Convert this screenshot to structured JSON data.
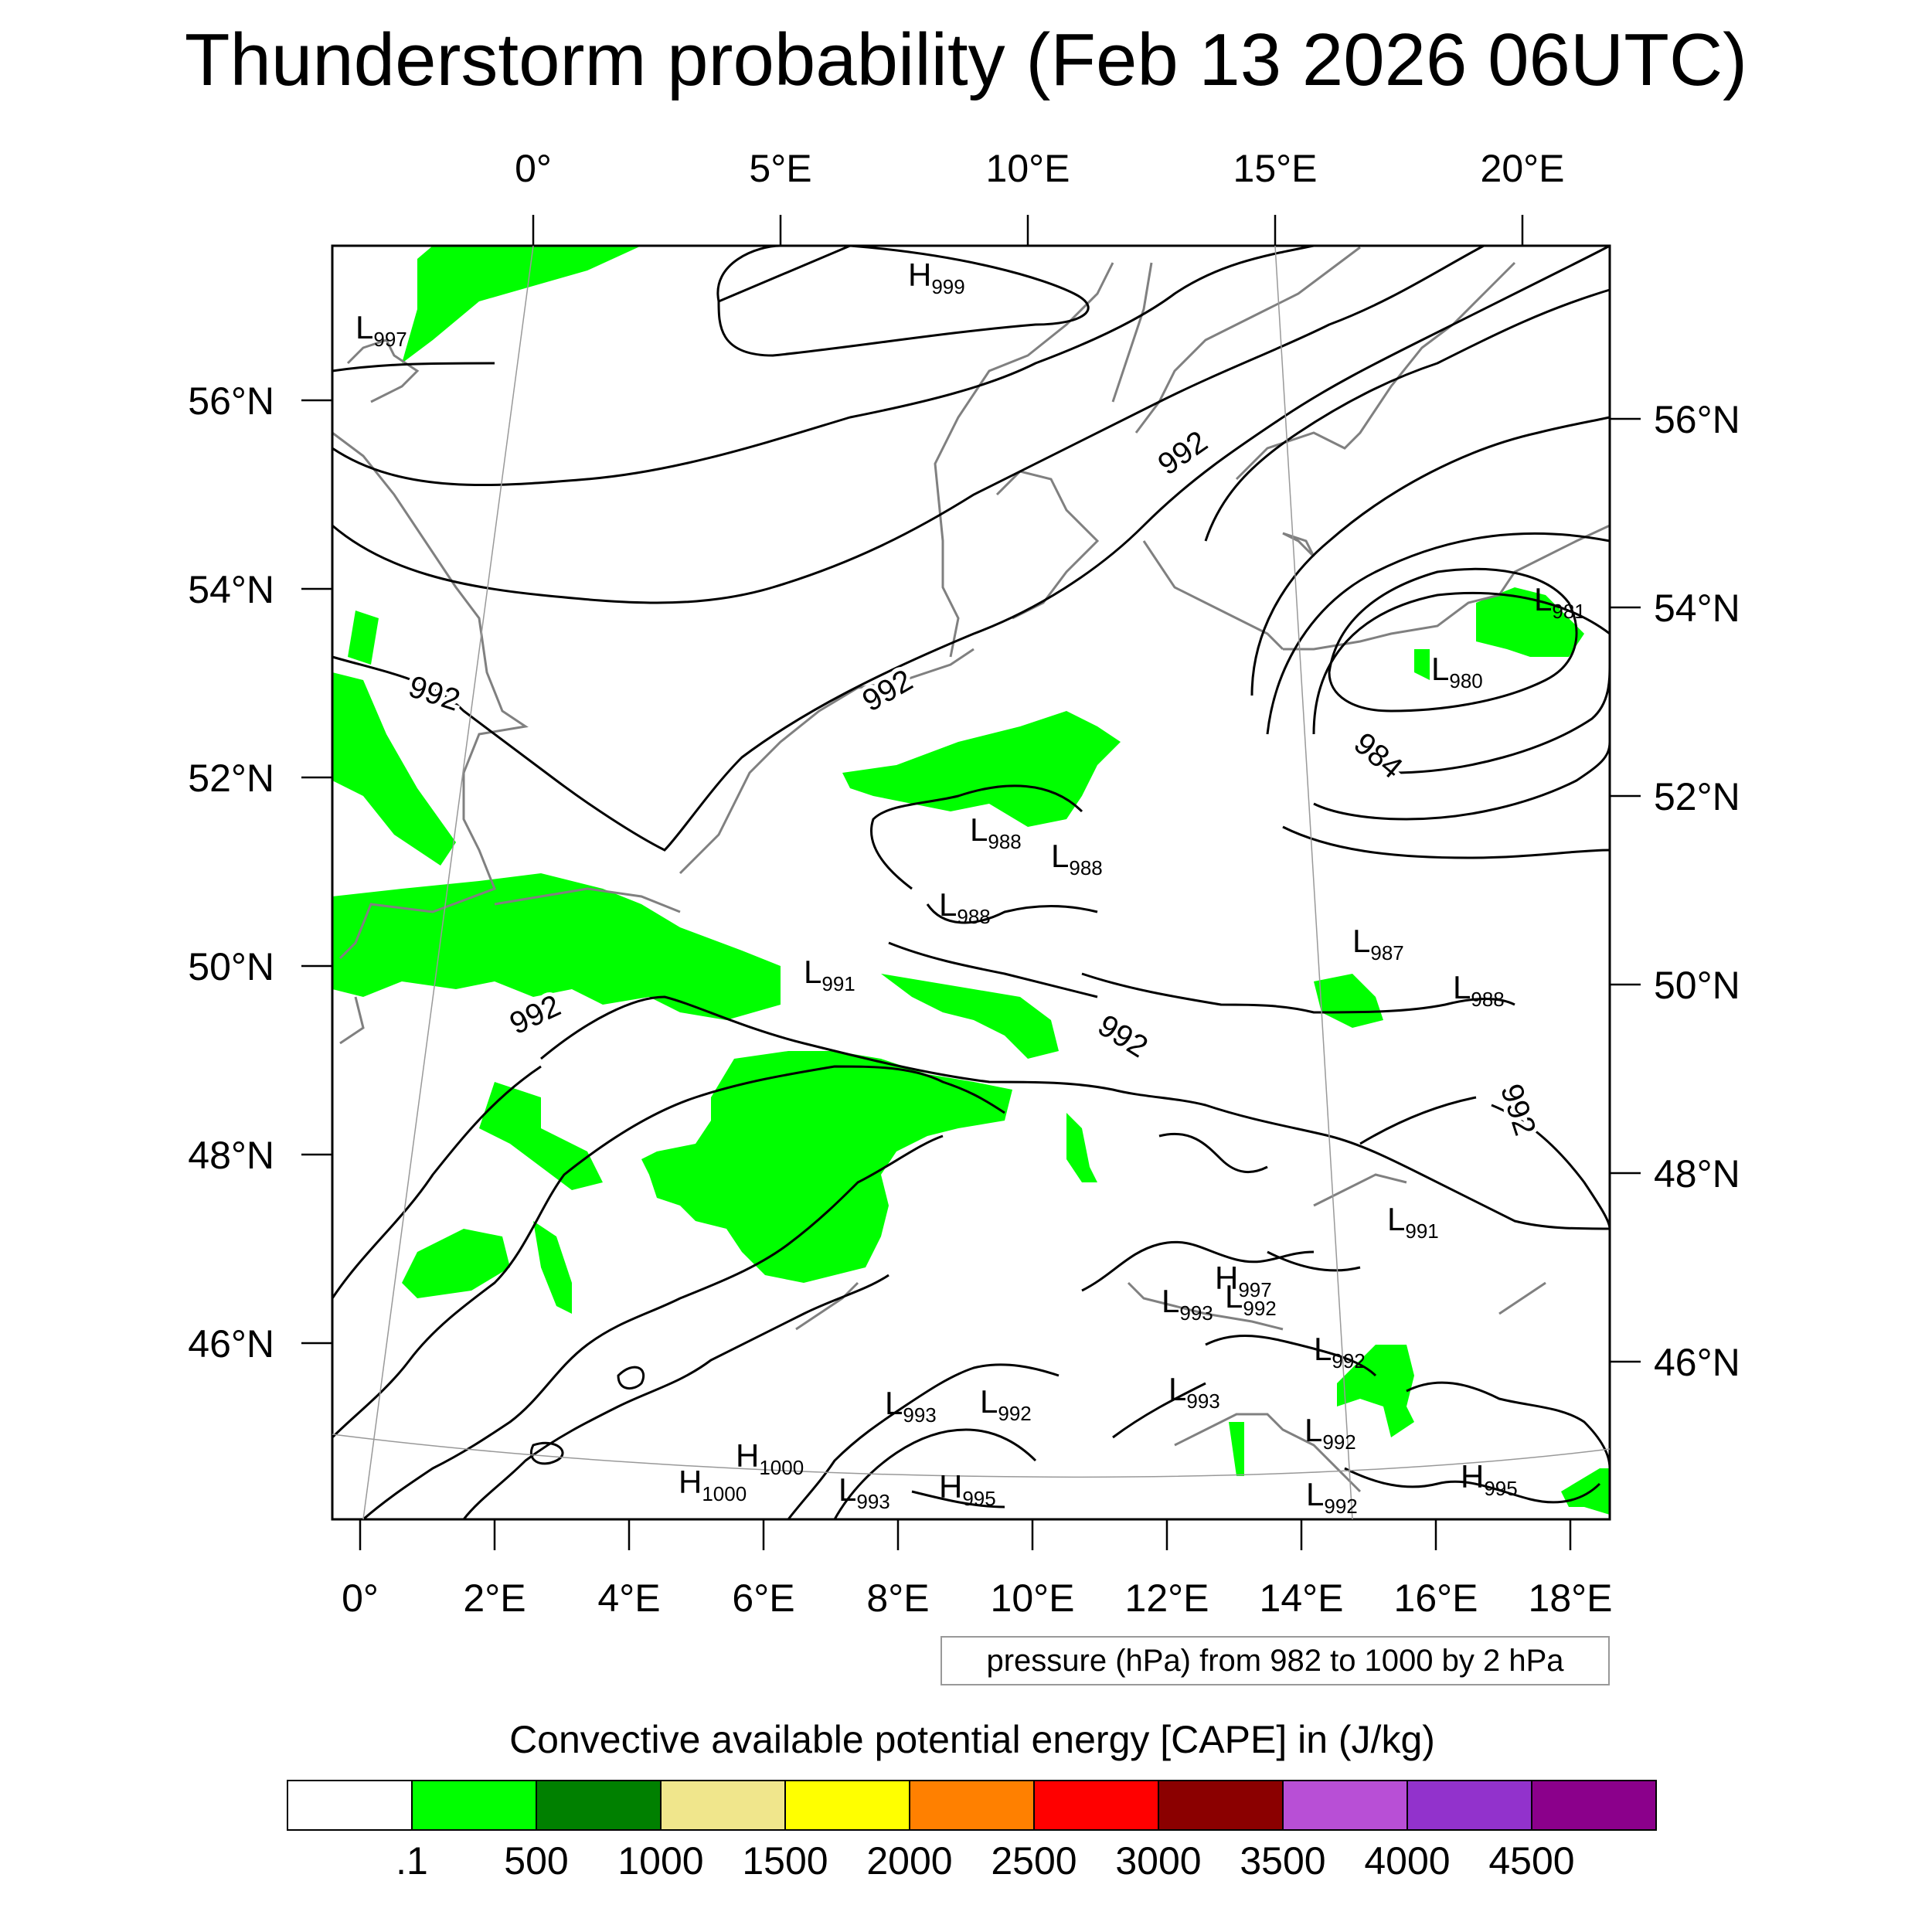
{
  "title": "Thunderstorm probability (Feb 13 2026 06UTC)",
  "top_axis_labels": [
    "0°",
    "5°E",
    "10°E",
    "15°E",
    "20°E"
  ],
  "bottom_axis_labels": [
    "0°",
    "2°E",
    "4°E",
    "6°E",
    "8°E",
    "10°E",
    "12°E",
    "14°E",
    "16°E",
    "18°E"
  ],
  "left_axis_labels": [
    "56°N",
    "54°N",
    "52°N",
    "50°N",
    "48°N",
    "46°N"
  ],
  "right_axis_labels": [
    "56°N",
    "54°N",
    "52°N",
    "50°N",
    "48°N",
    "46°N"
  ],
  "contour_labels": [
    "992",
    "992",
    "992",
    "992",
    "984",
    "992",
    "992"
  ],
  "pressure_centers": [
    {
      "type": "H",
      "value": "999"
    },
    {
      "type": "L",
      "value": "997"
    },
    {
      "type": "L",
      "value": "981"
    },
    {
      "type": "L",
      "value": "980"
    },
    {
      "type": "L",
      "value": "988"
    },
    {
      "type": "L",
      "value": "988"
    },
    {
      "type": "L",
      "value": "988"
    },
    {
      "type": "L",
      "value": "987"
    },
    {
      "type": "L",
      "value": "988"
    },
    {
      "type": "L",
      "value": "991"
    },
    {
      "type": "L",
      "value": "991"
    },
    {
      "type": "H",
      "value": "997"
    },
    {
      "type": "L",
      "value": "993"
    },
    {
      "type": "L",
      "value": "992"
    },
    {
      "type": "L",
      "value": "993"
    },
    {
      "type": "L",
      "value": "992"
    },
    {
      "type": "L",
      "value": "993"
    },
    {
      "type": "L",
      "value": "992"
    },
    {
      "type": "H",
      "value": "1000"
    },
    {
      "type": "H",
      "value": "1000"
    },
    {
      "type": "L",
      "value": "993"
    },
    {
      "type": "H",
      "value": "995"
    },
    {
      "type": "H",
      "value": "995"
    },
    {
      "type": "L",
      "value": "992"
    },
    {
      "type": "L",
      "value": "992"
    }
  ],
  "contour_info": "pressure (hPa) from 982 to 1000 by 2 hPa",
  "colorbar": {
    "title": "Convective available potential energy [CAPE] in (J/kg)",
    "colors": [
      "#ffffff",
      "#00ff00",
      "#008000",
      "#f0e68c",
      "#ffff00",
      "#ff8000",
      "#ff0000",
      "#8b0000",
      "#b84fd6",
      "#9232cc",
      "#8b008b"
    ],
    "tick_labels": [
      ".1",
      "500",
      "1000",
      "1500",
      "2000",
      "2500",
      "3000",
      "3500",
      "4000",
      "4500"
    ]
  },
  "cape_color": "#00ff00"
}
